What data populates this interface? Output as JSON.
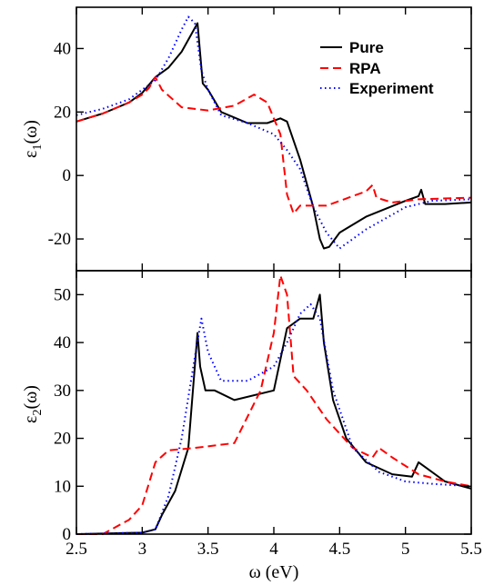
{
  "chart_data": [
    {
      "type": "line",
      "panel": "top",
      "ylabel": "ε1(ω)",
      "ylabel_main": "ε",
      "ylabel_sub": "1",
      "ylabel_tail": "(ω)",
      "xlim": [
        2.5,
        5.5
      ],
      "ylim": [
        -30,
        53
      ],
      "yticks": [
        -20,
        0,
        20,
        40
      ],
      "ytick_labels": [
        "-20",
        "0",
        "20",
        "40"
      ],
      "grid": false,
      "legend": {
        "position": "top-right",
        "entries": [
          "Pure",
          "RPA",
          "Experiment"
        ]
      },
      "series": [
        {
          "name": "Pure",
          "color": "#000000",
          "style": "solid",
          "x": [
            2.5,
            2.7,
            2.9,
            3.0,
            3.1,
            3.2,
            3.3,
            3.38,
            3.42,
            3.46,
            3.5,
            3.6,
            3.8,
            3.95,
            4.05,
            4.1,
            4.2,
            4.3,
            4.35,
            4.38,
            4.42,
            4.5,
            4.7,
            5.0,
            5.1,
            5.12,
            5.15,
            5.3,
            5.5
          ],
          "y": [
            17,
            19.5,
            23,
            26,
            31,
            34,
            39,
            45,
            48,
            29,
            27,
            20,
            16.5,
            16.5,
            18,
            17,
            5,
            -10,
            -20,
            -23,
            -22.5,
            -18,
            -13,
            -8,
            -6.5,
            -4.5,
            -9,
            -9,
            -8.5
          ]
        },
        {
          "name": "RPA",
          "color": "#ff0000",
          "style": "dashed",
          "x": [
            2.5,
            2.7,
            2.9,
            3.0,
            3.05,
            3.1,
            3.15,
            3.3,
            3.5,
            3.7,
            3.85,
            3.95,
            4.05,
            4.1,
            4.15,
            4.2,
            4.4,
            4.6,
            4.7,
            4.75,
            4.78,
            4.9,
            5.1,
            5.5
          ],
          "y": [
            17,
            19.5,
            23,
            25.5,
            27.5,
            31,
            27,
            21.5,
            20.5,
            22,
            25.5,
            23,
            13,
            -6,
            -12,
            -9.5,
            -9.5,
            -6.5,
            -5,
            -3,
            -7,
            -8.5,
            -7.5,
            -7
          ]
        },
        {
          "name": "Experiment",
          "color": "#0000ff",
          "style": "dotted",
          "x": [
            2.5,
            2.7,
            2.9,
            3.0,
            3.1,
            3.2,
            3.3,
            3.35,
            3.4,
            3.45,
            3.5,
            3.6,
            3.8,
            4.0,
            4.1,
            4.2,
            4.3,
            4.4,
            4.5,
            4.7,
            5.0,
            5.2,
            5.5
          ],
          "y": [
            19,
            21,
            24,
            27,
            30,
            37,
            46,
            50,
            48,
            33,
            27,
            19,
            16.5,
            13,
            8,
            2,
            -10,
            -18,
            -23,
            -17,
            -10,
            -8,
            -7.5
          ]
        }
      ]
    },
    {
      "type": "line",
      "panel": "bottom",
      "ylabel": "ε2(ω)",
      "ylabel_main": "ε",
      "ylabel_sub": "2",
      "ylabel_tail": "(ω)",
      "xlabel": "ω (eV)",
      "xlim": [
        2.5,
        5.5
      ],
      "ylim": [
        0,
        55
      ],
      "xticks": [
        2.5,
        3,
        3.5,
        4,
        4.5,
        5,
        5.5
      ],
      "xtick_labels": [
        "2.5",
        "3",
        "3.5",
        "4",
        "4.5",
        "5",
        "5.5"
      ],
      "yticks": [
        0,
        10,
        20,
        30,
        40,
        50
      ],
      "ytick_labels": [
        "0",
        "10",
        "20",
        "30",
        "40",
        "50"
      ],
      "grid": false,
      "series": [
        {
          "name": "Pure",
          "color": "#000000",
          "style": "solid",
          "x": [
            2.5,
            3.0,
            3.1,
            3.15,
            3.25,
            3.35,
            3.42,
            3.44,
            3.48,
            3.55,
            3.7,
            4.0,
            4.1,
            4.2,
            4.3,
            4.35,
            4.38,
            4.45,
            4.55,
            4.7,
            4.9,
            5.05,
            5.1,
            5.15,
            5.3,
            5.5
          ],
          "y": [
            0,
            0.3,
            1,
            4,
            9,
            18,
            42,
            35,
            30,
            30,
            28,
            30,
            43,
            45,
            45,
            50,
            40,
            28,
            20,
            15,
            12.5,
            12,
            15,
            14,
            11,
            9.5
          ]
        },
        {
          "name": "RPA",
          "color": "#ff0000",
          "style": "dashed",
          "x": [
            2.5,
            2.7,
            2.9,
            3.0,
            3.1,
            3.2,
            3.4,
            3.7,
            3.9,
            4.0,
            4.05,
            4.1,
            4.15,
            4.25,
            4.4,
            4.6,
            4.75,
            4.8,
            4.9,
            5.1,
            5.3,
            5.5
          ],
          "y": [
            0,
            0,
            3,
            6,
            15,
            17.5,
            18,
            19,
            30,
            42,
            54,
            50,
            33,
            30,
            24,
            18,
            16,
            18,
            16,
            12.5,
            11,
            10
          ]
        },
        {
          "name": "Experiment",
          "color": "#0000ff",
          "style": "dotted",
          "x": [
            2.5,
            3.0,
            3.1,
            3.2,
            3.3,
            3.4,
            3.45,
            3.5,
            3.6,
            3.8,
            4.0,
            4.1,
            4.2,
            4.28,
            4.35,
            4.45,
            4.6,
            4.8,
            5.0,
            5.2,
            5.5
          ],
          "y": [
            0,
            0.3,
            1,
            8,
            20,
            37,
            45,
            38,
            32,
            32,
            35,
            40,
            46,
            48,
            45,
            30,
            18,
            13,
            11,
            10.5,
            10
          ]
        }
      ]
    }
  ]
}
